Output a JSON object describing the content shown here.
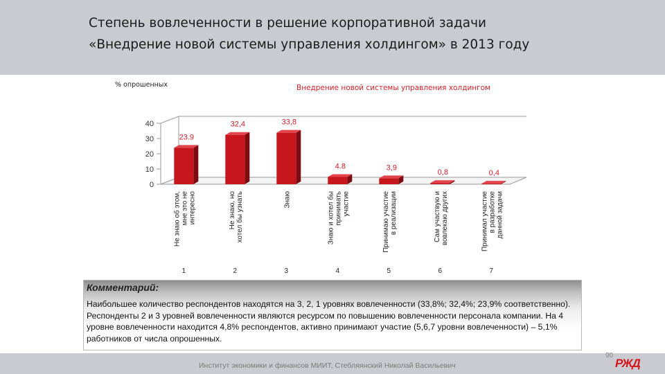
{
  "slide": {
    "title_line1": "Степень вовлеченности в решение корпоративной задачи",
    "title_line2": "«Внедрение новой системы управления холдингом» в 2013 году",
    "page_number": "90",
    "footer": "Институт экономики и финансов МИИТ, Стебляянский Николай Васильевич",
    "logo": "rzd-logo"
  },
  "chart_data": {
    "type": "bar",
    "title": "Внедрение новой системы управления холдингом",
    "ylabel": "% опрошенных",
    "ylim": [
      0,
      40
    ],
    "yticks": [
      "0",
      "10",
      "20",
      "30",
      "40"
    ],
    "categories": [
      "Не знаю об этом, мне это не интересно",
      "Не знаю, но хотел бы узнать",
      "Знаю",
      "Знаю и хотел бы принимать участие",
      "Принимаю участие в реализации",
      "Сам участвую и вовлекаю других",
      "Принимал участие в разработке данной задачи"
    ],
    "category_numbers": [
      "1",
      "2",
      "3",
      "4",
      "5",
      "6",
      "7"
    ],
    "values": [
      23.9,
      32.4,
      33.8,
      4.8,
      3.9,
      0.8,
      0.4
    ],
    "data_labels": [
      "23.9",
      "32,4",
      "33,8",
      "4.8",
      "3,9",
      "0,8",
      "0,4"
    ],
    "bar_color": "#c8161d",
    "grid": false,
    "style": "3d"
  },
  "comment": {
    "heading": "Комментарий:",
    "text": "Наибольшее количество респондентов находятся на 3, 2, 1 уровнях вовлеченности (33,8%; 32,4%; 23,9% соответственно). Респонденты 2 и 3 уровней вовлеченности являются ресурсом по повышению вовлеченности персонала компании. На 4 уровне вовлеченности находится 4,8% респондентов, активно принимают участие (5,6,7 уровни вовлеченности) – 5,1% работников от числа опрошенных."
  }
}
